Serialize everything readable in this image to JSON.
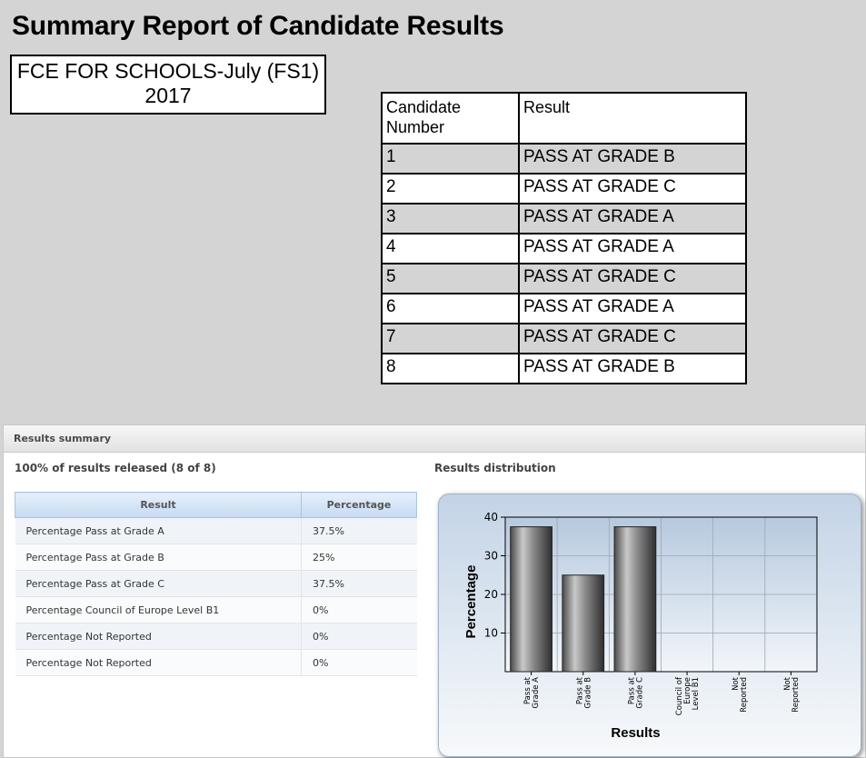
{
  "page_title": "Summary Report of Candidate Results",
  "exam": {
    "line1": "FCE FOR SCHOOLS-July (FS1)",
    "line2": "2017"
  },
  "candidates": {
    "header_number_line1": "Candidate",
    "header_number_line2": "Number",
    "header_result": "Result",
    "rows": [
      {
        "number": "1",
        "result": "PASS AT GRADE B"
      },
      {
        "number": "2",
        "result": "PASS AT GRADE C"
      },
      {
        "number": "3",
        "result": "PASS AT GRADE A"
      },
      {
        "number": "4",
        "result": "PASS AT GRADE A"
      },
      {
        "number": "5",
        "result": "PASS AT GRADE C"
      },
      {
        "number": "6",
        "result": "PASS AT GRADE A"
      },
      {
        "number": "7",
        "result": "PASS AT GRADE C"
      },
      {
        "number": "8",
        "result": "PASS AT GRADE B"
      }
    ]
  },
  "summary": {
    "panel_title": "Results summary",
    "released": "100% of results released (8 of 8)",
    "distribution_title": "Results distribution",
    "col_result": "Result",
    "col_percentage": "Percentage",
    "rows": [
      {
        "result": "Percentage Pass at Grade A",
        "percentage": "37.5%"
      },
      {
        "result": "Percentage Pass at Grade B",
        "percentage": "25%"
      },
      {
        "result": "Percentage Pass at Grade C",
        "percentage": "37.5%"
      },
      {
        "result": "Percentage Council of Europe Level B1",
        "percentage": "0%"
      },
      {
        "result": "Percentage Not Reported",
        "percentage": "0%"
      },
      {
        "result": "Percentage Not Reported",
        "percentage": "0%"
      }
    ]
  },
  "chart_data": {
    "type": "bar",
    "title": "",
    "xlabel": "Results",
    "ylabel": "Percentage",
    "ylim": [
      0,
      40
    ],
    "yticks": [
      10,
      20,
      30,
      40
    ],
    "grid": true,
    "categories": [
      [
        "Pass at",
        "Grade A"
      ],
      [
        "Pass at",
        "Grade B"
      ],
      [
        "Pass at",
        "Grade C"
      ],
      [
        "Council of",
        "Europe",
        "Level B1"
      ],
      [
        "Not",
        "Reported"
      ],
      [
        "Not",
        "Reported"
      ]
    ],
    "values": [
      37.5,
      25,
      37.5,
      0,
      0,
      0
    ]
  },
  "colors": {
    "bar": "#6b6b6b",
    "page_bg": "#d4d4d4",
    "header_blue": "#c5daf2"
  }
}
